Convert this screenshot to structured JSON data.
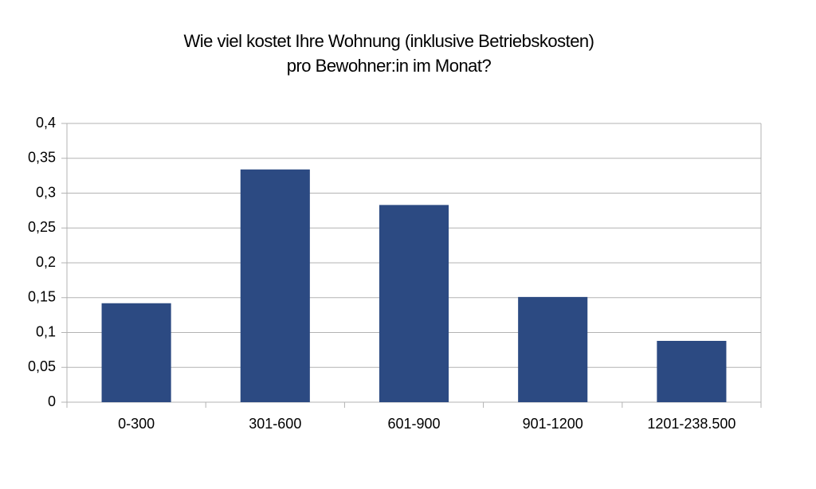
{
  "chart_data": {
    "type": "bar",
    "title": [
      "Wie viel kostet Ihre Wohnung (inklusive Betriebskosten)",
      "pro Bewohner:in im Monat?"
    ],
    "categories": [
      "0-300",
      "301-600",
      "601-900",
      "901-1200",
      "1201-238.500"
    ],
    "values": [
      0.142,
      0.334,
      0.283,
      0.151,
      0.088
    ],
    "color": "#2c4a82",
    "ylim": [
      0,
      0.4
    ],
    "yticks": [
      0,
      {
        "value": 0.05,
        "label": "0,05"
      },
      {
        "value": 0.1,
        "label": "0,1"
      },
      {
        "value": 0.15,
        "label": "0,15"
      },
      {
        "value": 0.2,
        "label": "0,2"
      },
      {
        "value": 0.25,
        "label": "0,25"
      },
      {
        "value": 0.3,
        "label": "0,3"
      },
      {
        "value": 0.35,
        "label": "0,35"
      },
      {
        "value": 0.4,
        "label": "0,4"
      }
    ],
    "grid": true
  }
}
